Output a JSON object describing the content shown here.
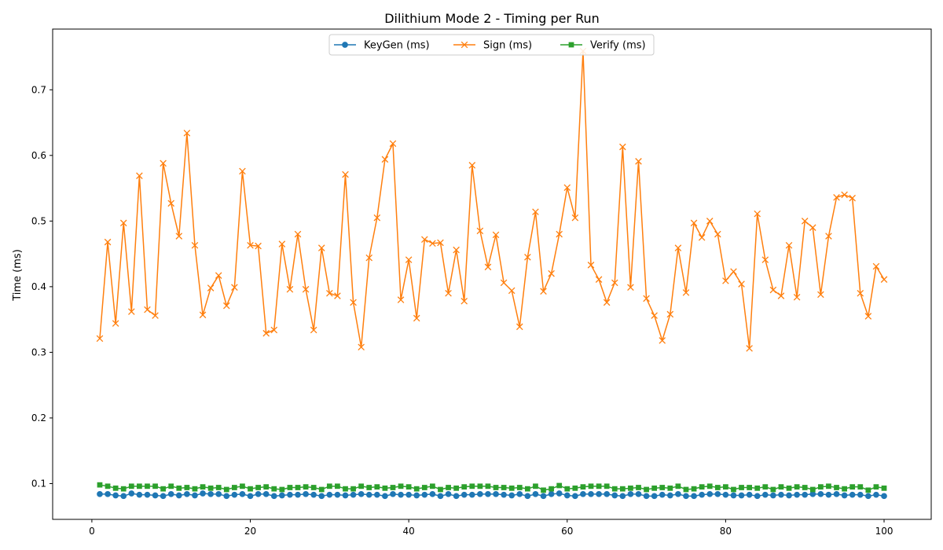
{
  "chart_data": {
    "type": "line",
    "title": "Dilithium Mode 2 - Timing per Run",
    "xlabel": "",
    "ylabel": "Time (ms)",
    "xlim": [
      -4.95,
      105.95
    ],
    "ylim": [
      0.0455,
      0.7925
    ],
    "x_ticks": [
      0,
      20,
      40,
      60,
      80,
      100
    ],
    "y_ticks": [
      0.1,
      0.2,
      0.3,
      0.4,
      0.5,
      0.6,
      0.7
    ],
    "x_tick_labels": [
      "0",
      "20",
      "40",
      "60",
      "80",
      "100"
    ],
    "y_tick_labels": [
      "0.1",
      "0.2",
      "0.3",
      "0.4",
      "0.5",
      "0.6",
      "0.7"
    ],
    "grid": false,
    "legend_position": "top-center",
    "x": [
      1,
      2,
      3,
      4,
      5,
      6,
      7,
      8,
      9,
      10,
      11,
      12,
      13,
      14,
      15,
      16,
      17,
      18,
      19,
      20,
      21,
      22,
      23,
      24,
      25,
      26,
      27,
      28,
      29,
      30,
      31,
      32,
      33,
      34,
      35,
      36,
      37,
      38,
      39,
      40,
      41,
      42,
      43,
      44,
      45,
      46,
      47,
      48,
      49,
      50,
      51,
      52,
      53,
      54,
      55,
      56,
      57,
      58,
      59,
      60,
      61,
      62,
      63,
      64,
      65,
      66,
      67,
      68,
      69,
      70,
      71,
      72,
      73,
      74,
      75,
      76,
      77,
      78,
      79,
      80,
      81,
      82,
      83,
      84,
      85,
      86,
      87,
      88,
      89,
      90,
      91,
      92,
      93,
      94,
      95,
      96,
      97,
      98,
      99,
      100
    ],
    "series": [
      {
        "name": "KeyGen (ms)",
        "color": "#1f77b4",
        "marker": "circle",
        "values": [
          0.084,
          0.084,
          0.082,
          0.081,
          0.085,
          0.083,
          0.083,
          0.082,
          0.081,
          0.084,
          0.082,
          0.084,
          0.082,
          0.085,
          0.084,
          0.084,
          0.081,
          0.083,
          0.084,
          0.081,
          0.084,
          0.084,
          0.081,
          0.082,
          0.083,
          0.083,
          0.084,
          0.083,
          0.081,
          0.083,
          0.083,
          0.082,
          0.083,
          0.084,
          0.083,
          0.083,
          0.081,
          0.084,
          0.083,
          0.083,
          0.082,
          0.083,
          0.084,
          0.081,
          0.084,
          0.081,
          0.083,
          0.083,
          0.084,
          0.084,
          0.084,
          0.083,
          0.082,
          0.084,
          0.081,
          0.084,
          0.081,
          0.084,
          0.085,
          0.082,
          0.081,
          0.084,
          0.084,
          0.084,
          0.084,
          0.082,
          0.081,
          0.084,
          0.084,
          0.081,
          0.081,
          0.083,
          0.082,
          0.084,
          0.081,
          0.081,
          0.083,
          0.084,
          0.084,
          0.083,
          0.082,
          0.082,
          0.083,
          0.081,
          0.083,
          0.082,
          0.083,
          0.082,
          0.083,
          0.083,
          0.084,
          0.084,
          0.083,
          0.084,
          0.082,
          0.083,
          0.083,
          0.081,
          0.083,
          0.081
        ]
      },
      {
        "name": "Sign (ms)",
        "color": "#ff7f0e",
        "marker": "x",
        "values": [
          0.321,
          0.468,
          0.344,
          0.497,
          0.362,
          0.569,
          0.365,
          0.356,
          0.588,
          0.527,
          0.477,
          0.634,
          0.463,
          0.357,
          0.398,
          0.417,
          0.371,
          0.399,
          0.576,
          0.463,
          0.462,
          0.329,
          0.334,
          0.465,
          0.396,
          0.48,
          0.396,
          0.334,
          0.459,
          0.39,
          0.386,
          0.571,
          0.376,
          0.308,
          0.444,
          0.505,
          0.594,
          0.618,
          0.38,
          0.441,
          0.352,
          0.472,
          0.466,
          0.467,
          0.39,
          0.456,
          0.378,
          0.585,
          0.485,
          0.43,
          0.479,
          0.406,
          0.394,
          0.339,
          0.445,
          0.514,
          0.393,
          0.42,
          0.48,
          0.551,
          0.505,
          0.759,
          0.433,
          0.411,
          0.376,
          0.406,
          0.613,
          0.399,
          0.591,
          0.382,
          0.356,
          0.318,
          0.358,
          0.459,
          0.391,
          0.497,
          0.475,
          0.5,
          0.48,
          0.409,
          0.423,
          0.404,
          0.306,
          0.511,
          0.441,
          0.395,
          0.386,
          0.463,
          0.384,
          0.5,
          0.49,
          0.388,
          0.477,
          0.536,
          0.54,
          0.535,
          0.39,
          0.355,
          0.431,
          0.411
        ]
      },
      {
        "name": "Verify (ms)",
        "color": "#2ca02c",
        "marker": "square",
        "values": [
          0.098,
          0.096,
          0.093,
          0.092,
          0.096,
          0.096,
          0.096,
          0.096,
          0.092,
          0.096,
          0.093,
          0.094,
          0.092,
          0.095,
          0.093,
          0.094,
          0.091,
          0.094,
          0.096,
          0.092,
          0.094,
          0.095,
          0.092,
          0.091,
          0.094,
          0.094,
          0.095,
          0.094,
          0.091,
          0.096,
          0.096,
          0.092,
          0.092,
          0.096,
          0.094,
          0.095,
          0.093,
          0.094,
          0.096,
          0.095,
          0.092,
          0.094,
          0.096,
          0.091,
          0.094,
          0.093,
          0.095,
          0.096,
          0.096,
          0.096,
          0.094,
          0.094,
          0.093,
          0.094,
          0.092,
          0.096,
          0.09,
          0.092,
          0.097,
          0.092,
          0.093,
          0.095,
          0.096,
          0.096,
          0.096,
          0.092,
          0.092,
          0.093,
          0.094,
          0.091,
          0.093,
          0.094,
          0.093,
          0.096,
          0.091,
          0.092,
          0.095,
          0.096,
          0.094,
          0.095,
          0.091,
          0.094,
          0.094,
          0.093,
          0.095,
          0.091,
          0.095,
          0.093,
          0.095,
          0.094,
          0.091,
          0.095,
          0.096,
          0.094,
          0.092,
          0.095,
          0.095,
          0.09,
          0.095,
          0.093
        ]
      }
    ]
  }
}
